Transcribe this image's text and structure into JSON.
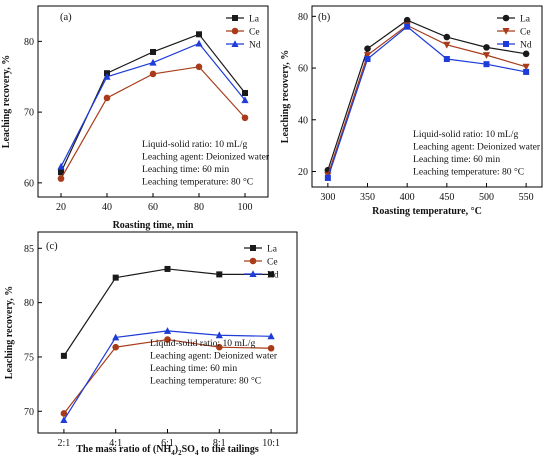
{
  "chart_data": [
    {
      "id": "a",
      "type": "line",
      "panel_label": "(a)",
      "xlabel": "Roasting time, min",
      "ylabel": "Leaching recovery, %",
      "x": [
        20,
        40,
        60,
        80,
        100
      ],
      "xlim": [
        10,
        110
      ],
      "ylim": [
        58,
        85
      ],
      "xticks": [
        20,
        40,
        60,
        80,
        100
      ],
      "yticks": [
        60,
        70,
        80
      ],
      "series": [
        {
          "name": "La",
          "color": "#1a1a1a",
          "marker": "square",
          "values": [
            61.5,
            75.5,
            78.5,
            81.0,
            72.7
          ]
        },
        {
          "name": "Ce",
          "color": "#a83c1a",
          "marker": "circle",
          "values": [
            60.6,
            72.0,
            75.4,
            76.4,
            69.2
          ]
        },
        {
          "name": "Nd",
          "color": "#1e3cd8",
          "marker": "triangle",
          "values": [
            62.3,
            75.0,
            77.0,
            79.7,
            71.7
          ]
        }
      ],
      "legend_position": "top-right",
      "annotations": [
        "Liquid-solid ratio: 10 mL/g",
        "Leaching agent: Deionized water",
        "Leaching time: 60 min",
        "Leaching temperature: 80 °C"
      ]
    },
    {
      "id": "b",
      "type": "line",
      "panel_label": "(b)",
      "xlabel": "Roasting temperature, °C",
      "ylabel": "Leaching recovery, %",
      "x": [
        300,
        350,
        400,
        450,
        500,
        550
      ],
      "xlim": [
        280,
        570
      ],
      "ylim": [
        14,
        84
      ],
      "xticks": [
        300,
        350,
        400,
        450,
        500,
        550
      ],
      "yticks": [
        20,
        40,
        60,
        80
      ],
      "series": [
        {
          "name": "La",
          "color": "#1a1a1a",
          "marker": "circle",
          "values": [
            20.5,
            67.5,
            78.5,
            72.0,
            68.0,
            65.5
          ]
        },
        {
          "name": "Ce",
          "color": "#a83c1a",
          "marker": "triangle-down",
          "values": [
            18.5,
            65.0,
            76.5,
            69.0,
            65.0,
            60.5
          ]
        },
        {
          "name": "Nd",
          "color": "#1e3cd8",
          "marker": "square",
          "values": [
            17.5,
            63.5,
            76.0,
            63.5,
            61.5,
            58.5
          ]
        }
      ],
      "legend_position": "top-right",
      "annotations": [
        "Liquid-solid ratio: 10 mL/g",
        "Leaching agent: Deionized water",
        "Leaching time: 60 min",
        "Leaching temperature: 80 °C"
      ]
    },
    {
      "id": "c",
      "type": "line",
      "panel_label": "(c)",
      "xlabel_parts": [
        "The mass ratio of (NH",
        "4",
        ")",
        "2",
        "SO",
        "4",
        " to the tailings"
      ],
      "ylabel": "Leaching recovery, %",
      "categories": [
        "2:1",
        "4:1",
        "6:1",
        "8:1",
        "10:1"
      ],
      "ylim": [
        68,
        86.5
      ],
      "yticks": [
        70,
        75,
        80,
        85
      ],
      "series": [
        {
          "name": "La",
          "color": "#1a1a1a",
          "marker": "square",
          "values": [
            75.1,
            82.3,
            83.1,
            82.6,
            82.6
          ]
        },
        {
          "name": "Ce",
          "color": "#a83c1a",
          "marker": "circle",
          "values": [
            69.8,
            75.9,
            76.6,
            75.9,
            75.8
          ]
        },
        {
          "name": "Nd",
          "color": "#1e3cd8",
          "marker": "triangle",
          "values": [
            69.2,
            76.8,
            77.4,
            77.0,
            76.9
          ]
        }
      ],
      "legend_position": "top-right",
      "annotations": [
        "Liquid-solid ratio: 10 mL/g",
        "Leaching agent: Deionized water",
        "Leaching time: 60 min",
        "Leaching temperature: 80 °C"
      ]
    }
  ]
}
